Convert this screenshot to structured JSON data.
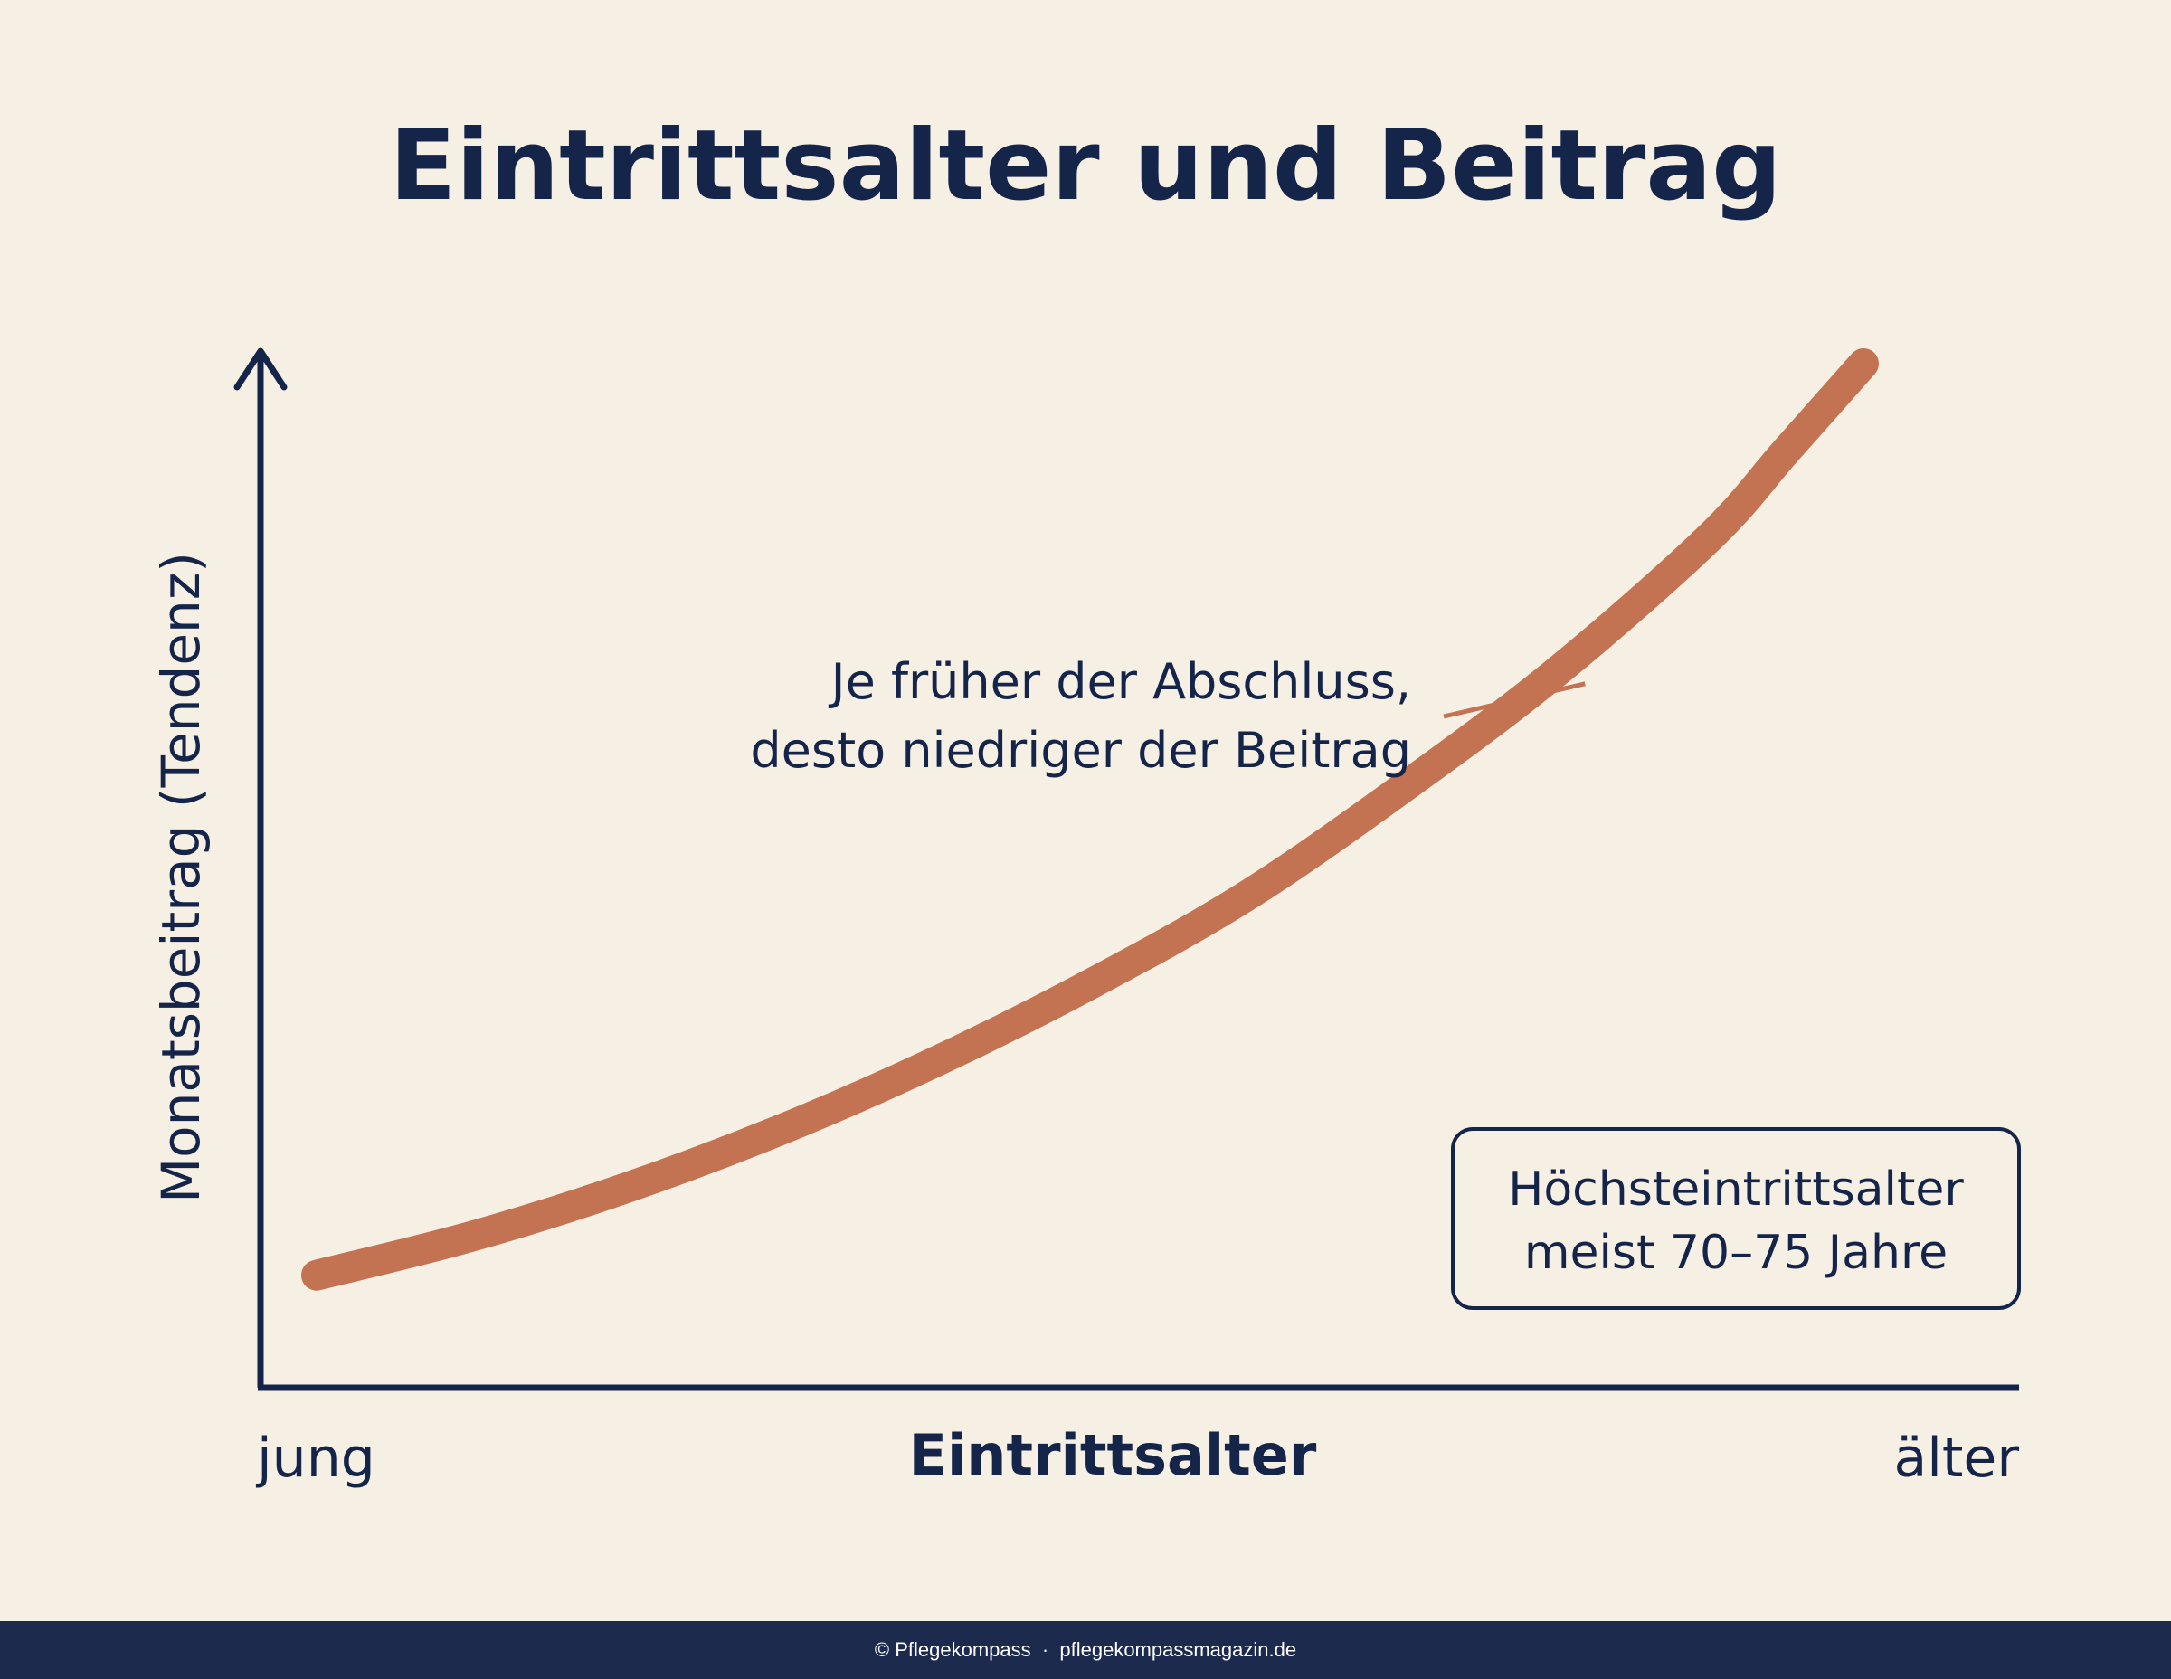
{
  "chart_data": {
    "type": "line",
    "title": "Eintrittsalter und Beitrag",
    "xlabel": "Eintrittsalter",
    "ylabel": "Monatsbeitrag (Tendenz)",
    "x_tick_labels": [
      "jung",
      "älter"
    ],
    "xlim": [
      0,
      1
    ],
    "ylim": [
      0,
      1
    ],
    "grid": false,
    "series": [
      {
        "x": [
          0.0,
          0.1,
          0.2,
          0.3,
          0.4,
          0.5,
          0.6,
          0.7,
          0.8,
          0.9,
          0.95,
          1.0
        ],
        "values": [
          0.06,
          0.1,
          0.15,
          0.21,
          0.28,
          0.36,
          0.45,
          0.56,
          0.68,
          0.82,
          0.91,
          1.0
        ],
        "color": "#c47352"
      }
    ],
    "annotation": {
      "lines": [
        "Je früher der Abschluss,",
        "desto niedriger der Beitrag"
      ],
      "x": 0.82,
      "y": 0.67
    },
    "note_box": {
      "lines": [
        "Höchsteintrittsalter",
        "meist 70–75 Jahre"
      ]
    }
  },
  "colors": {
    "background": "#f6efe3",
    "ink": "#15254a",
    "curve": "#c47352",
    "footer": "#1c2a4e"
  },
  "footer": {
    "text": "© Pflegekompass  ·  pflegekompassmagazin.de"
  }
}
